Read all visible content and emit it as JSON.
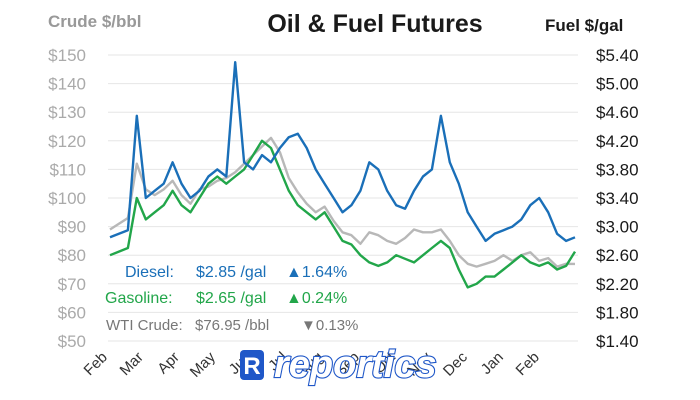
{
  "chart_data": {
    "type": "line",
    "title": "Oil & Fuel Futures",
    "y_left_label": "Crude $/bbl",
    "y_right_label": "Fuel $/gal",
    "y_left_range": [
      50,
      150
    ],
    "y_right_range": [
      1.4,
      5.4
    ],
    "y_left_ticks": [
      "$150",
      "$140",
      "$130",
      "$120",
      "$110",
      "$100",
      "$90",
      "$80",
      "$70",
      "$60",
      "$50"
    ],
    "y_right_ticks": [
      "$5.40",
      "$5.00",
      "$4.60",
      "$4.20",
      "$3.80",
      "$3.40",
      "$3.00",
      "$2.60",
      "$2.20",
      "$1.80",
      "$1.40"
    ],
    "x_tick_labels": [
      "Feb",
      "Mar",
      "Apr",
      "May",
      "Jun",
      "Jul",
      "Aug",
      "Sep",
      "Oct",
      "Nov",
      "Dec",
      "Jan",
      "Feb"
    ],
    "grid": "horizontal",
    "series": [
      {
        "name": "Diesel",
        "axis": "right",
        "color": "#1a6fb8",
        "values": [
          2.85,
          2.9,
          2.95,
          4.55,
          3.4,
          3.5,
          3.6,
          3.9,
          3.6,
          3.4,
          3.5,
          3.7,
          3.8,
          3.7,
          5.3,
          3.9,
          3.8,
          4.0,
          3.9,
          4.1,
          4.25,
          4.3,
          4.1,
          3.8,
          3.6,
          3.4,
          3.2,
          3.3,
          3.5,
          3.9,
          3.8,
          3.5,
          3.3,
          3.25,
          3.5,
          3.7,
          3.8,
          4.55,
          3.9,
          3.6,
          3.2,
          3.0,
          2.8,
          2.9,
          2.95,
          3.0,
          3.1,
          3.3,
          3.4,
          3.2,
          2.9,
          2.8,
          2.85
        ]
      },
      {
        "name": "Gasoline",
        "axis": "right",
        "color": "#22a64a",
        "values": [
          2.6,
          2.65,
          2.7,
          3.4,
          3.1,
          3.2,
          3.3,
          3.5,
          3.3,
          3.2,
          3.4,
          3.6,
          3.7,
          3.6,
          3.7,
          3.8,
          4.0,
          4.2,
          4.1,
          3.8,
          3.5,
          3.3,
          3.2,
          3.1,
          3.2,
          3.0,
          2.8,
          2.75,
          2.6,
          2.5,
          2.45,
          2.5,
          2.6,
          2.55,
          2.5,
          2.6,
          2.7,
          2.8,
          2.7,
          2.4,
          2.15,
          2.2,
          2.3,
          2.3,
          2.4,
          2.5,
          2.6,
          2.5,
          2.45,
          2.5,
          2.4,
          2.45,
          2.65
        ]
      },
      {
        "name": "WTI Crude",
        "axis": "left",
        "color": "#b8b8b8",
        "values": [
          89,
          91,
          93,
          112,
          103,
          101,
          103,
          106,
          101,
          98,
          103,
          104,
          106,
          107,
          109,
          112,
          115,
          118,
          121,
          116,
          107,
          102,
          98,
          95,
          97,
          92,
          88,
          87,
          84,
          88,
          87,
          85,
          84,
          86,
          89,
          88,
          88,
          89,
          85,
          80,
          77,
          76,
          77,
          78,
          80,
          78,
          80,
          81,
          78,
          79,
          76,
          77,
          76.95
        ]
      }
    ]
  },
  "legend": {
    "diesel": {
      "label": "Diesel:",
      "price": "$2.85 /gal",
      "change": "▲1.64%"
    },
    "gasoline": {
      "label": "Gasoline:",
      "price": "$2.65 /gal",
      "change": "▲0.24%"
    },
    "crude": {
      "label": "WTI Crude:",
      "price": "$76.95 /bbl",
      "change": "▼0.13%"
    }
  },
  "watermark": "reportics"
}
